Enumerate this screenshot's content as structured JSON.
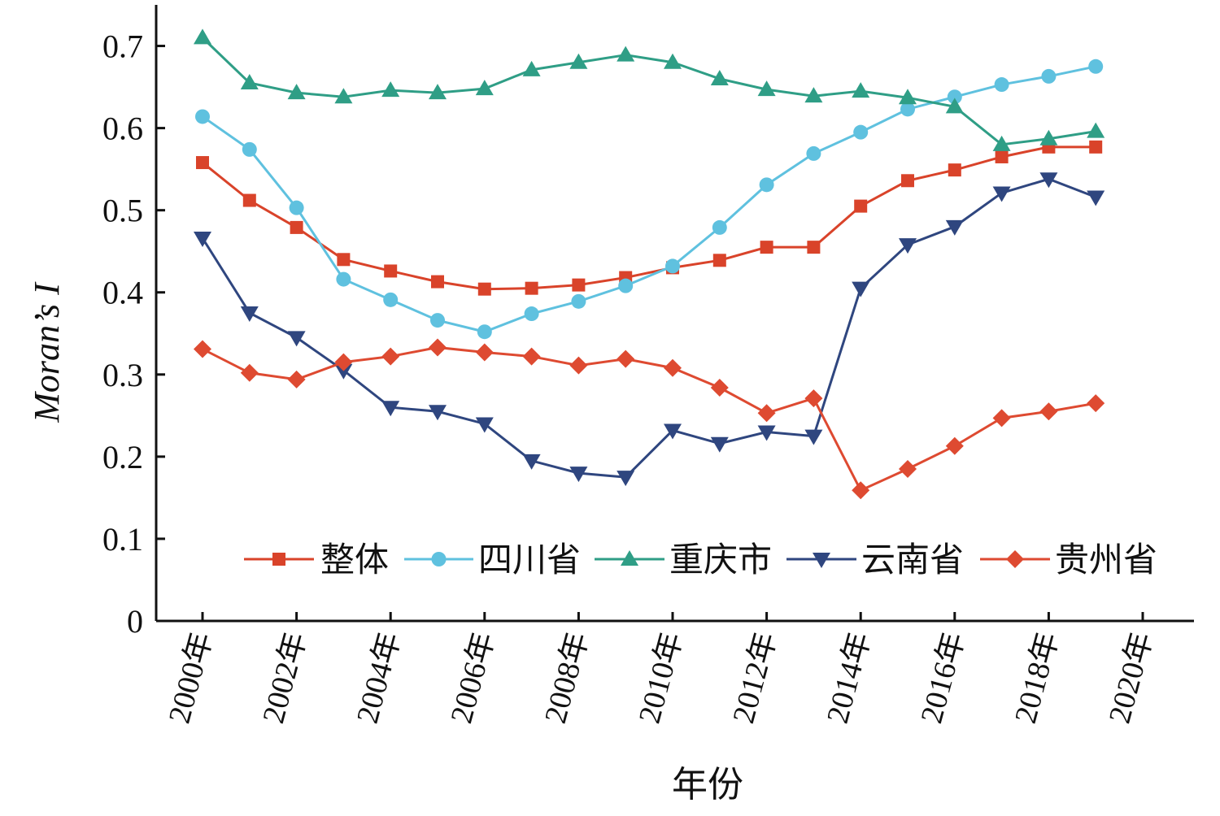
{
  "chart_data": {
    "type": "line",
    "xlabel": "年份",
    "ylabel": "Moran’s I",
    "xlim": [
      1999,
      2021
    ],
    "ylim": [
      0,
      0.75
    ],
    "x_ticks": [
      "2000年",
      "2002年",
      "2004年",
      "2006年",
      "2008年",
      "2010年",
      "2012年",
      "2014年",
      "2016年",
      "2018年",
      "2020年"
    ],
    "y_ticks": [
      "0",
      "0.1",
      "0.2",
      "0.3",
      "0.4",
      "0.5",
      "0.6",
      "0.7"
    ],
    "x": [
      2000,
      2001,
      2002,
      2003,
      2004,
      2005,
      2006,
      2007,
      2008,
      2009,
      2010,
      2011,
      2012,
      2013,
      2014,
      2015,
      2016,
      2017,
      2018,
      2019
    ],
    "grid": false,
    "legend_position": "bottom-right",
    "series": [
      {
        "name": "整体",
        "color": "#d9432a",
        "marker": "square",
        "values": [
          0.558,
          0.512,
          0.479,
          0.44,
          0.426,
          0.413,
          0.404,
          0.405,
          0.409,
          0.418,
          0.43,
          0.439,
          0.455,
          0.455,
          0.505,
          0.536,
          0.549,
          0.565,
          0.577,
          0.577
        ]
      },
      {
        "name": "四川省",
        "color": "#5fc1df",
        "marker": "circle",
        "values": [
          0.614,
          0.574,
          0.503,
          0.416,
          0.391,
          0.366,
          0.352,
          0.374,
          0.389,
          0.408,
          0.432,
          0.479,
          0.531,
          0.569,
          0.595,
          0.623,
          0.638,
          0.653,
          0.663,
          0.675
        ]
      },
      {
        "name": "重庆市",
        "color": "#2f9e86",
        "marker": "triangle-up",
        "values": [
          0.71,
          0.655,
          0.643,
          0.638,
          0.646,
          0.643,
          0.648,
          0.671,
          0.68,
          0.689,
          0.68,
          0.66,
          0.647,
          0.639,
          0.645,
          0.637,
          0.626,
          0.58,
          0.587,
          0.596
        ]
      },
      {
        "name": "云南省",
        "color": "#2f467f",
        "marker": "triangle-down",
        "values": [
          0.466,
          0.375,
          0.345,
          0.305,
          0.26,
          0.255,
          0.24,
          0.195,
          0.18,
          0.175,
          0.232,
          0.216,
          0.23,
          0.225,
          0.405,
          0.458,
          0.48,
          0.521,
          0.538,
          0.516
        ]
      },
      {
        "name": "贵州省",
        "color": "#de4a31",
        "marker": "diamond",
        "values": [
          0.331,
          0.302,
          0.294,
          0.315,
          0.322,
          0.333,
          0.327,
          0.322,
          0.311,
          0.319,
          0.308,
          0.284,
          0.253,
          0.271,
          0.159,
          0.185,
          0.213,
          0.247,
          0.255,
          0.265
        ]
      }
    ]
  }
}
